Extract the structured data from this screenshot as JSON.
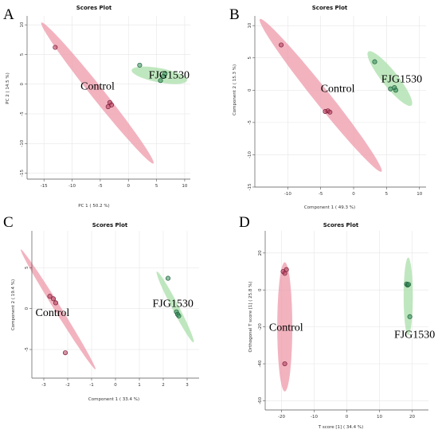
{
  "colors": {
    "control_fill": "#ee99aa",
    "control_point": "#b23a5a",
    "fjg_fill": "#a9dfa9",
    "fjg_point": "#2e8b57",
    "grid": "#e6e6e6",
    "axis": "#555555"
  },
  "chart_data": [
    {
      "type": "scatter",
      "panel": "A",
      "title": "Scores Plot",
      "xlabel": "PC 1 ( 50.2 %)",
      "ylabel": "PC 2 ( 14.5 %)",
      "xlim": [
        -18,
        11
      ],
      "ylim": [
        -16,
        11.5
      ],
      "xticks": [
        -15,
        -10,
        -5,
        0,
        5,
        10
      ],
      "yticks": [
        -15,
        -10,
        -5,
        0,
        5,
        10
      ],
      "grid": true,
      "series": [
        {
          "name": "Control",
          "color": "control",
          "points": [
            [
              -13,
              6.2
            ],
            [
              -3.3,
              -3.1
            ],
            [
              -3.0,
              -3.5
            ],
            [
              -3.6,
              -3.8
            ]
          ],
          "ellipse": {
            "cx": -5.5,
            "cy": -1.5,
            "rx": 15.5,
            "ry": 1.1,
            "angle": -50
          },
          "label_pos": [
            -8.5,
            -0.9
          ]
        },
        {
          "name": "FJG1530",
          "color": "fjg",
          "points": [
            [
              2.0,
              3.2
            ],
            [
              5.7,
              0.6
            ],
            [
              6.2,
              1.3
            ],
            [
              6.5,
              1.8
            ]
          ],
          "ellipse": {
            "cx": 5.5,
            "cy": 1.5,
            "rx": 5.0,
            "ry": 1.2,
            "angle": -10
          },
          "label_pos": [
            3.6,
            1.0
          ]
        }
      ]
    },
    {
      "type": "scatter",
      "panel": "B",
      "title": "Scores Plot",
      "xlabel": "Component 1 ( 49.3 %)",
      "ylabel": "Component 2 ( 15.3 %)",
      "xlim": [
        -15,
        11
      ],
      "ylim": [
        -15,
        11.5
      ],
      "xticks": [
        -10,
        -5,
        0,
        5,
        10
      ],
      "yticks": [
        -15,
        -10,
        -5,
        0,
        5,
        10
      ],
      "grid": true,
      "series": [
        {
          "name": "Control",
          "color": "control",
          "points": [
            [
              -11,
              7.0
            ],
            [
              -4.3,
              -3.3
            ],
            [
              -3.9,
              -3.2
            ],
            [
              -3.6,
              -3.4
            ]
          ],
          "ellipse": {
            "cx": -5.0,
            "cy": -0.8,
            "rx": 15.0,
            "ry": 1.2,
            "angle": -52
          },
          "label_pos": [
            -5.0,
            -0.3
          ]
        },
        {
          "name": "FJG1530",
          "color": "fjg",
          "points": [
            [
              3.2,
              4.4
            ],
            [
              5.6,
              0.2
            ],
            [
              6.2,
              0.4
            ],
            [
              6.4,
              0.0
            ]
          ],
          "ellipse": {
            "cx": 5.5,
            "cy": 1.8,
            "rx": 5.3,
            "ry": 1.2,
            "angle": -52
          },
          "label_pos": [
            4.2,
            1.2
          ]
        }
      ]
    },
    {
      "type": "scatter",
      "panel": "C",
      "title": "Scores Plot",
      "xlabel": "Component 1 ( 33.4 %)",
      "ylabel": "Component 2 ( 19.4 %)",
      "xlim": [
        -3.5,
        3.5
      ],
      "ylim": [
        -8.5,
        9.5
      ],
      "xticks": [
        -3,
        -2,
        -1,
        0,
        1,
        2,
        3
      ],
      "yticks": [
        -5,
        0,
        5
      ],
      "grid": true,
      "series": [
        {
          "name": "Control",
          "color": "control",
          "points": [
            [
              -2.75,
              1.5
            ],
            [
              -2.6,
              1.2
            ],
            [
              -2.5,
              0.7
            ],
            [
              -2.1,
              -5.4
            ]
          ],
          "ellipse": {
            "cx": -2.4,
            "cy": -0.1,
            "rx": 7.5,
            "ry": 0.16,
            "angle": -78
          },
          "label_pos": [
            -3.35,
            -0.9
          ]
        },
        {
          "name": "FJG1530",
          "color": "fjg",
          "points": [
            [
              2.2,
              3.7
            ],
            [
              2.55,
              -0.4
            ],
            [
              2.6,
              -0.7
            ],
            [
              2.65,
              -0.9
            ]
          ],
          "ellipse": {
            "cx": 2.5,
            "cy": 0.2,
            "rx": 4.4,
            "ry": 0.16,
            "angle": -80
          },
          "label_pos": [
            1.55,
            0.2
          ]
        }
      ]
    },
    {
      "type": "scatter",
      "panel": "D",
      "title": "Scores Plot",
      "xlabel": "T score [1] ( 34.4 %)",
      "ylabel": "Orthogonal T score [1] ( 25.8 %)",
      "xlim": [
        -25,
        25
      ],
      "ylim": [
        -65,
        32
      ],
      "xticks": [
        -20,
        -10,
        0,
        10,
        20
      ],
      "yticks": [
        -60,
        -40,
        -20,
        0,
        20
      ],
      "grid": true,
      "series": [
        {
          "name": "Control",
          "color": "control",
          "points": [
            [
              -19.5,
              10
            ],
            [
              -18.5,
              11
            ],
            [
              -19,
              9
            ],
            [
              -19,
              -40
            ]
          ],
          "ellipse": {
            "cx": -19,
            "cy": -20,
            "rx": 35,
            "ry": 2.3,
            "angle": -90
          },
          "label_pos": [
            -23.8,
            -22
          ]
        },
        {
          "name": "FJG1530",
          "color": "fjg",
          "points": [
            [
              18.3,
              3.2
            ],
            [
              18.6,
              2.6
            ],
            [
              18.9,
              3.0
            ],
            [
              19.3,
              -14.5
            ]
          ],
          "ellipse": {
            "cx": 18.8,
            "cy": -3.5,
            "rx": 21,
            "ry": 1.4,
            "angle": -90
          },
          "label_pos": [
            14.5,
            -26
          ]
        }
      ]
    }
  ]
}
